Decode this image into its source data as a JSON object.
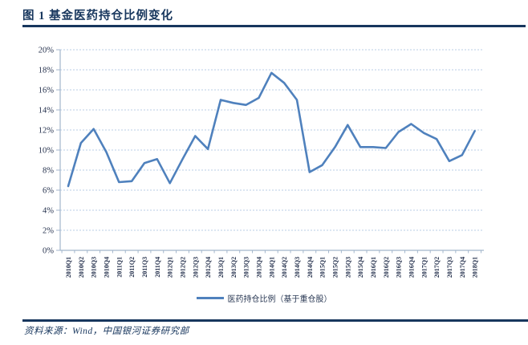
{
  "header": {
    "title": "图 1  基金医药持仓比例变化"
  },
  "footer": {
    "source": "资料来源：Wind，中国银河证券研究部"
  },
  "colors": {
    "accent": "#17365D",
    "series_line": "#4F81BD",
    "gridline": "#B8CCE4",
    "axis": "#A3B6CC",
    "tick_text": "#26324E"
  },
  "chart_data": {
    "type": "line",
    "title": "基金医药持仓比例变化",
    "categories": [
      "2010Q1",
      "2010Q2",
      "2010Q3",
      "2010Q4",
      "2011Q1",
      "2011Q2",
      "2011Q3",
      "2011Q4",
      "2012Q1",
      "2012Q2",
      "2012Q3",
      "2012Q4",
      "2013Q1",
      "2013Q2",
      "2013Q3",
      "2013Q4",
      "2014Q1",
      "2014Q2",
      "2014Q3",
      "2014Q4",
      "2015Q1",
      "2015Q2",
      "2015Q3",
      "2015Q4",
      "2016Q1",
      "2016Q2",
      "2016Q3",
      "2016Q4",
      "2017Q1",
      "2017Q2",
      "2017Q3",
      "2017Q4",
      "2018Q1"
    ],
    "series": [
      {
        "name": "医药持仓比例（基于重仓股）",
        "values": [
          6.4,
          10.7,
          12.1,
          9.8,
          6.8,
          6.9,
          8.7,
          9.1,
          6.7,
          9.1,
          11.4,
          10.1,
          15.0,
          14.7,
          14.5,
          15.2,
          17.7,
          16.7,
          15.0,
          7.8,
          8.5,
          10.3,
          12.5,
          10.3,
          10.3,
          10.2,
          11.8,
          12.6,
          11.7,
          11.1,
          8.9,
          9.5,
          11.9
        ]
      }
    ],
    "xlabel": "",
    "ylabel": "",
    "ylim": [
      0,
      20
    ],
    "ytick_step": 2,
    "ytick_format": "percent",
    "grid": true,
    "legend_position": "bottom"
  }
}
